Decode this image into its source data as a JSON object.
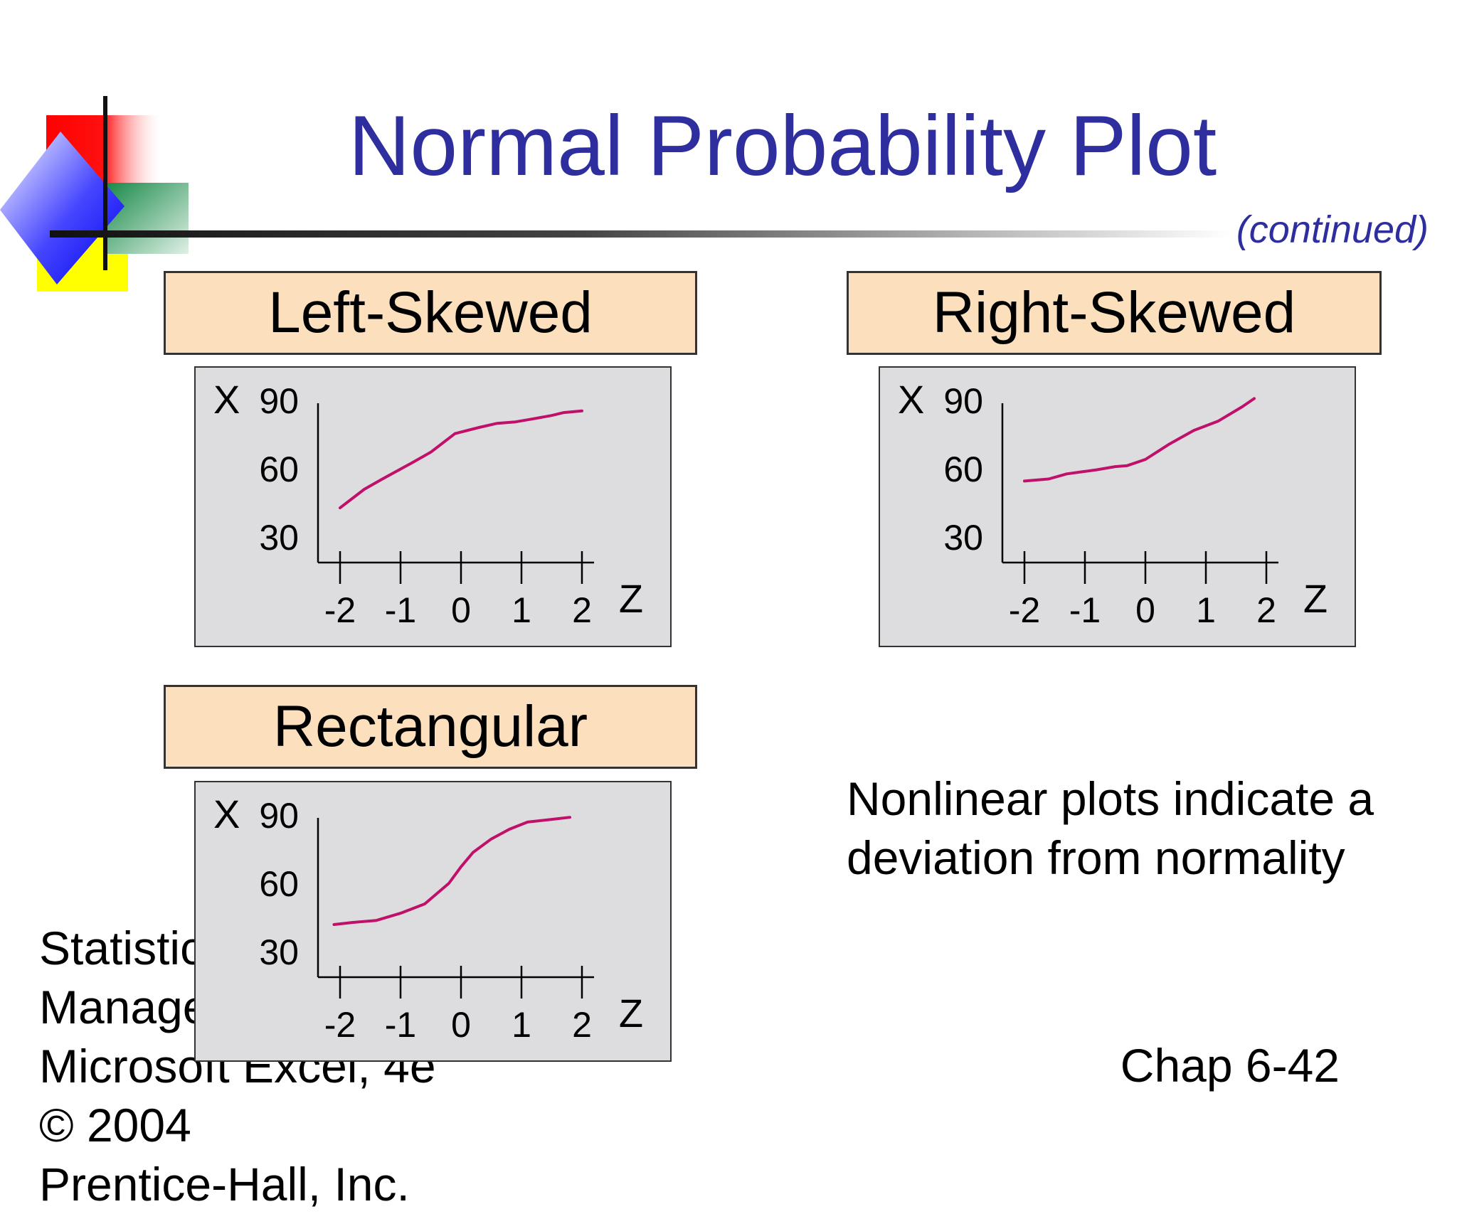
{
  "slide": {
    "title": "Normal Probability Plot",
    "continued": "(continued)",
    "note": "Nonlinear plots indicate a deviation from normality",
    "footer_lines": [
      "Statistics for Managers Using",
      "Microsoft Excel, 4e © 2004",
      "Prentice-Hall, Inc."
    ],
    "slide_number": "Chap 6-42"
  },
  "colors": {
    "title": "#2e2e9e",
    "heading_fill": "#fce0bd",
    "panel_fill": "#dddcde",
    "curve": "#c0106a"
  },
  "icons": [
    "slide-logo-icon"
  ],
  "chart_data": [
    {
      "type": "line",
      "title": "Left-Skewed",
      "ylabel": "X",
      "xlabel": "Z",
      "yticks": [
        "90",
        "60",
        "30"
      ],
      "xticks": [
        "-2",
        "-1",
        "0",
        "1",
        "2"
      ],
      "grid": false,
      "series": [
        {
          "x": [
            -2.0,
            -1.6,
            -1.3,
            -0.8,
            -0.5,
            -0.1,
            0.3,
            0.6,
            0.9,
            1.2,
            1.5,
            1.7,
            2.0
          ],
          "y": [
            31,
            40,
            45,
            53,
            58,
            67,
            70,
            72,
            72.7,
            74.2,
            75.8,
            77.2,
            78
          ]
        }
      ]
    },
    {
      "type": "line",
      "title": "Right-Skewed",
      "ylabel": "X",
      "xlabel": "Z",
      "yticks": [
        "90",
        "60",
        "30"
      ],
      "xticks": [
        "-2",
        "-1",
        "0",
        "1",
        "2"
      ],
      "grid": false,
      "series": [
        {
          "x": [
            -2.0,
            -1.6,
            -1.3,
            -0.8,
            -0.5,
            -0.3,
            0.0,
            0.4,
            0.8,
            1.2,
            1.6,
            1.8
          ],
          "y": [
            44,
            45,
            47.5,
            49.5,
            51,
            51.5,
            54.5,
            62,
            68.5,
            73,
            80,
            84
          ]
        }
      ]
    },
    {
      "type": "line",
      "title": "Rectangular",
      "ylabel": "X",
      "xlabel": "Z",
      "yticks": [
        "90",
        "60",
        "30"
      ],
      "xticks": [
        "-2",
        "-1",
        "0",
        "1",
        "2"
      ],
      "grid": false,
      "series": [
        {
          "x": [
            -2.1,
            -1.8,
            -1.4,
            -1.0,
            -0.6,
            -0.4,
            -0.2,
            0.0,
            0.2,
            0.5,
            0.8,
            1.1,
            1.5,
            1.8
          ],
          "y": [
            30,
            31,
            32,
            35.5,
            40,
            45,
            50,
            58,
            65,
            71.5,
            76.2,
            79.7,
            81,
            82
          ]
        }
      ]
    }
  ]
}
